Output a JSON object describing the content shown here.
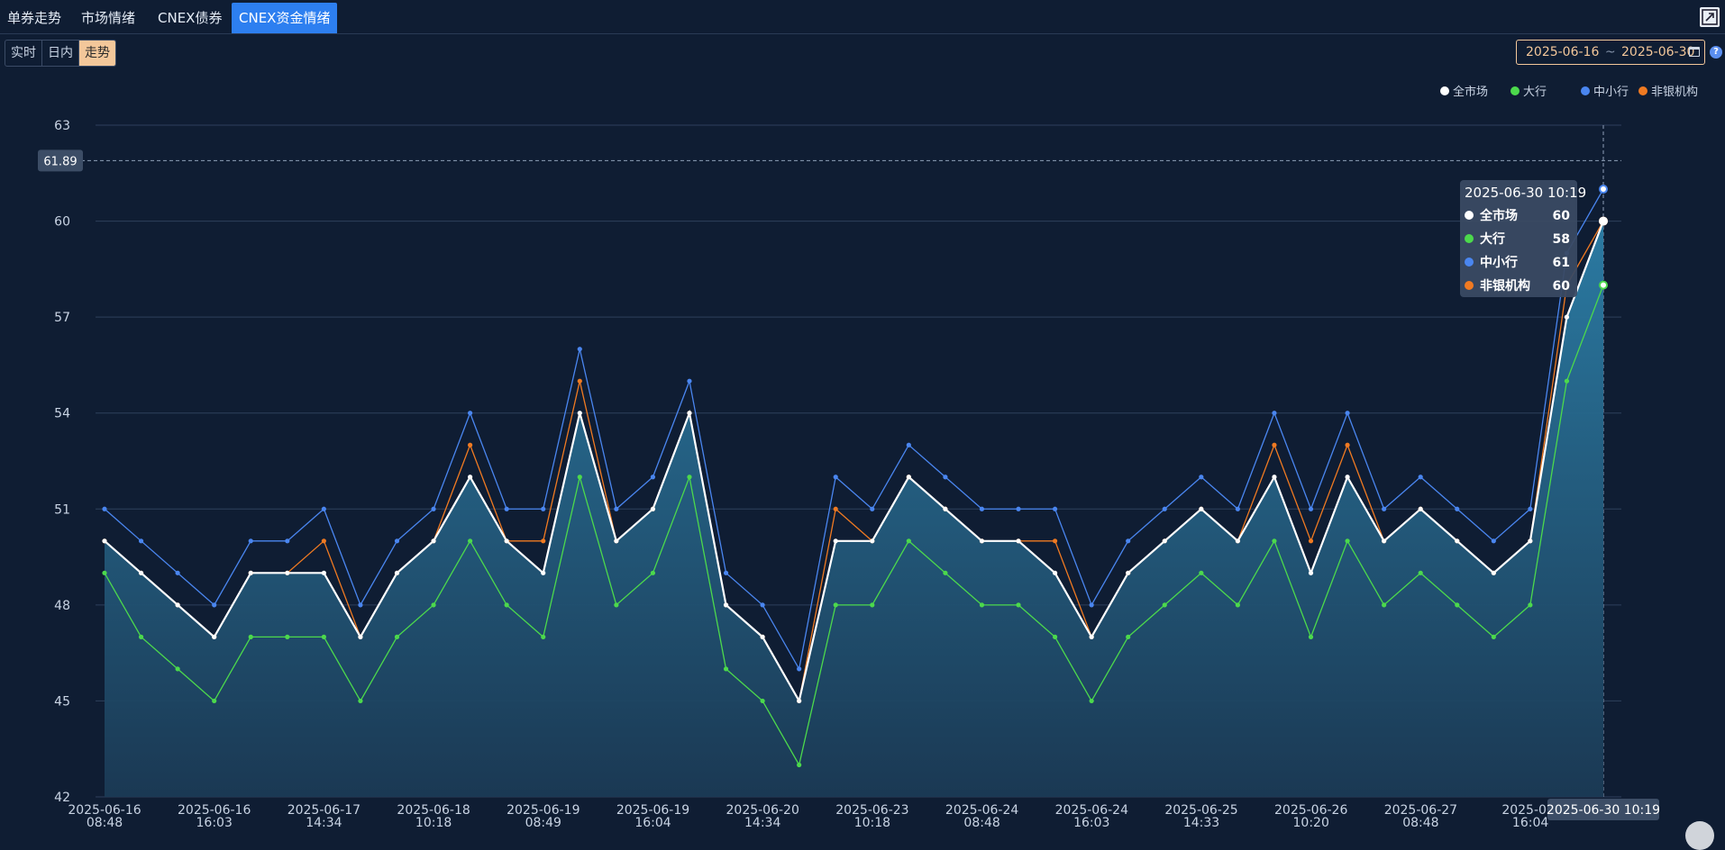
{
  "tabs": [
    {
      "label": "单券走势",
      "active": false
    },
    {
      "label": "市场情绪",
      "active": false
    },
    {
      "label": "CNEX债券",
      "active": false
    },
    {
      "label": "CNEX资金情绪",
      "active": true
    }
  ],
  "subtabs": [
    {
      "label": "实时",
      "active": false
    },
    {
      "label": "日内",
      "active": false
    },
    {
      "label": "走势",
      "active": true
    }
  ],
  "date_range": {
    "start": "2025-06-16",
    "separator": "~",
    "end": "2025-06-30"
  },
  "help_label": "?",
  "colors": {
    "all": "#ffffff",
    "big": "#4cd94c",
    "small": "#4a86f0",
    "nonbank": "#f07a22",
    "accent": "#2d7ff0",
    "area_top": "#2c7fa8",
    "area_bottom": "#1b3a55"
  },
  "icons": {
    "expand": "expand-icon",
    "calendar": "calendar-icon",
    "help": "help-icon",
    "corner": "app-corner-icon"
  },
  "chart_data": {
    "type": "line",
    "ylim": [
      42,
      63
    ],
    "yticks": [
      42,
      45,
      48,
      51,
      54,
      57,
      60,
      63
    ],
    "grid": true,
    "legend_position": "top-right",
    "crosshair_value": "61.89",
    "crosshair_x_label": "2025-06-30 10:19",
    "xtick_labels": [
      [
        "2025-06-16",
        "08:48"
      ],
      [
        "2025-06-16",
        "16:03"
      ],
      [
        "2025-06-17",
        "14:34"
      ],
      [
        "2025-06-18",
        "10:18"
      ],
      [
        "2025-06-19",
        "08:49"
      ],
      [
        "2025-06-19",
        "16:04"
      ],
      [
        "2025-06-20",
        "14:34"
      ],
      [
        "2025-06-23",
        "10:18"
      ],
      [
        "2025-06-24",
        "08:48"
      ],
      [
        "2025-06-24",
        "16:03"
      ],
      [
        "2025-06-25",
        "14:33"
      ],
      [
        "2025-06-26",
        "10:20"
      ],
      [
        "2025-06-27",
        "08:48"
      ],
      [
        "2025-06-",
        "16:04"
      ]
    ],
    "series": [
      {
        "name": "全市场",
        "key": "all",
        "values": [
          50,
          49,
          48,
          47,
          49,
          49,
          49,
          47,
          49,
          50,
          52,
          50,
          49,
          54,
          50,
          51,
          54,
          48,
          47,
          45,
          50,
          50,
          52,
          51,
          50,
          50,
          49,
          47,
          49,
          50,
          51,
          50,
          52,
          49,
          52,
          50,
          51,
          50,
          49,
          50,
          57,
          60
        ]
      },
      {
        "name": "大行",
        "key": "big",
        "values": [
          49,
          47,
          46,
          45,
          47,
          47,
          47,
          45,
          47,
          48,
          50,
          48,
          47,
          52,
          48,
          49,
          52,
          46,
          45,
          43,
          48,
          48,
          50,
          49,
          48,
          48,
          47,
          45,
          47,
          48,
          49,
          48,
          50,
          47,
          50,
          48,
          49,
          48,
          47,
          48,
          55,
          58
        ]
      },
      {
        "name": "中小行",
        "key": "small",
        "values": [
          51,
          50,
          49,
          48,
          50,
          50,
          51,
          48,
          50,
          51,
          54,
          51,
          51,
          56,
          51,
          52,
          55,
          49,
          48,
          46,
          52,
          51,
          53,
          52,
          51,
          51,
          51,
          48,
          50,
          51,
          52,
          51,
          54,
          51,
          54,
          51,
          52,
          51,
          50,
          51,
          59,
          61
        ]
      },
      {
        "name": "非银机构",
        "key": "nonbank",
        "values": [
          50,
          49,
          48,
          47,
          49,
          49,
          50,
          47,
          49,
          50,
          53,
          50,
          50,
          55,
          50,
          51,
          54,
          48,
          47,
          45,
          51,
          50,
          52,
          51,
          50,
          50,
          50,
          47,
          49,
          50,
          51,
          50,
          53,
          50,
          53,
          50,
          51,
          50,
          49,
          50,
          58,
          60
        ]
      }
    ],
    "tooltip": {
      "title": "2025-06-30 10:19",
      "rows": [
        {
          "name": "全市场",
          "value": "60",
          "key": "all"
        },
        {
          "name": "大行",
          "value": "58",
          "key": "big"
        },
        {
          "name": "中小行",
          "value": "61",
          "key": "small"
        },
        {
          "name": "非银机构",
          "value": "60",
          "key": "nonbank"
        }
      ]
    }
  }
}
